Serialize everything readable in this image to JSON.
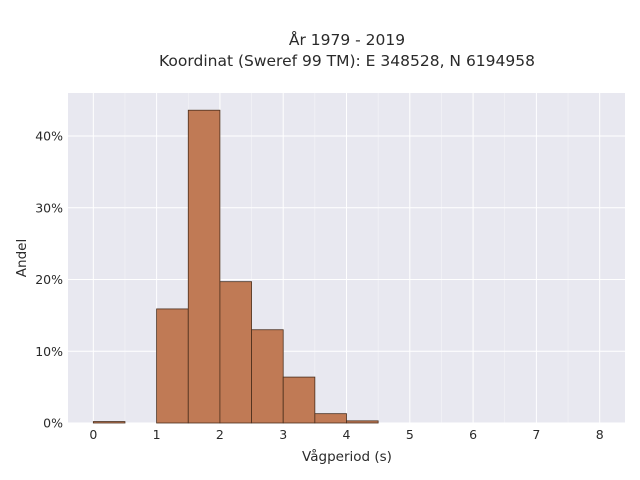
{
  "chart_data": {
    "type": "bar",
    "title_line1": "År 1979 - 2019",
    "title_line2": "Koordinat (Sweref 99 TM): E 348528, N 6194958",
    "xlabel": "Vågperiod (s)",
    "ylabel": "Andel",
    "bin_width": 0.5,
    "bins": [
      {
        "start": 0.0,
        "value": 0.2
      },
      {
        "start": 0.5,
        "value": 0.0
      },
      {
        "start": 1.0,
        "value": 15.9
      },
      {
        "start": 1.5,
        "value": 43.6
      },
      {
        "start": 2.0,
        "value": 19.7
      },
      {
        "start": 2.5,
        "value": 13.0
      },
      {
        "start": 3.0,
        "value": 6.4
      },
      {
        "start": 3.5,
        "value": 1.3
      },
      {
        "start": 4.0,
        "value": 0.3
      }
    ],
    "xlim": [
      -0.4,
      8.4
    ],
    "ylim": [
      0,
      46
    ],
    "xticks": [
      0,
      1,
      2,
      3,
      4,
      5,
      6,
      7,
      8
    ],
    "xtick_labels": [
      "0",
      "1",
      "2",
      "3",
      "4",
      "5",
      "6",
      "7",
      "8"
    ],
    "yticks": [
      0,
      10,
      20,
      30,
      40
    ],
    "ytick_labels": [
      "0%",
      "10%",
      "20%",
      "30%",
      "40%"
    ],
    "grid": true,
    "legend": "none",
    "colors": {
      "bar_fill": "#c07a55",
      "bar_edge": "#4a2e1c",
      "plot_bg": "#e8e8f0",
      "grid": "#ffffff"
    }
  }
}
